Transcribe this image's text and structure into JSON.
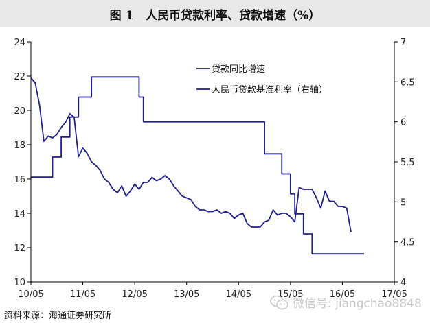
{
  "title": {
    "figure_label": "图 1",
    "text": "人民币贷款利率、贷款增速（%）"
  },
  "source": "资料来源：海通证券研究所",
  "watermark": {
    "text": "微信号: jiangchao8848",
    "icon": "wechat-icon"
  },
  "colors": {
    "series": "#1f1f8f",
    "axis": "#000000",
    "title_bg": "#e8e8e8"
  },
  "chart_data": {
    "type": "line",
    "x_ticks": [
      "10/05",
      "11/05",
      "12/05",
      "13/05",
      "14/05",
      "15/05",
      "16/05",
      "17/05"
    ],
    "x_range": [
      "2010-05",
      "2017-05"
    ],
    "y_left": {
      "min": 10,
      "max": 24,
      "ticks": [
        10,
        12,
        14,
        16,
        18,
        20,
        22,
        24
      ]
    },
    "y_right": {
      "min": 4,
      "max": 7,
      "ticks": [
        4,
        4.5,
        5,
        5.5,
        6,
        6.5,
        7
      ]
    },
    "legend": {
      "placement": "top-center"
    },
    "grid": false,
    "series": [
      {
        "name": "贷款同比增速",
        "axis": "left",
        "style": "line",
        "points": [
          [
            "2010-05",
            21.9
          ],
          [
            "2010-06",
            21.6
          ],
          [
            "2010-07",
            20.3
          ],
          [
            "2010-08",
            18.2
          ],
          [
            "2010-09",
            18.5
          ],
          [
            "2010-10",
            18.4
          ],
          [
            "2010-11",
            18.6
          ],
          [
            "2010-12",
            19.0
          ],
          [
            "2011-01",
            19.3
          ],
          [
            "2011-02",
            19.8
          ],
          [
            "2011-03",
            19.6
          ],
          [
            "2011-04",
            17.3
          ],
          [
            "2011-05",
            17.8
          ],
          [
            "2011-06",
            17.5
          ],
          [
            "2011-07",
            17.0
          ],
          [
            "2011-08",
            16.8
          ],
          [
            "2011-09",
            16.5
          ],
          [
            "2011-10",
            16.0
          ],
          [
            "2011-11",
            15.8
          ],
          [
            "2011-12",
            15.4
          ],
          [
            "2012-01",
            15.2
          ],
          [
            "2012-02",
            15.6
          ],
          [
            "2012-03",
            15.0
          ],
          [
            "2012-04",
            15.3
          ],
          [
            "2012-05",
            15.7
          ],
          [
            "2012-06",
            15.4
          ],
          [
            "2012-07",
            15.8
          ],
          [
            "2012-08",
            15.8
          ],
          [
            "2012-09",
            16.1
          ],
          [
            "2012-10",
            15.9
          ],
          [
            "2012-11",
            16.0
          ],
          [
            "2012-12",
            16.2
          ],
          [
            "2013-01",
            16.0
          ],
          [
            "2013-02",
            15.6
          ],
          [
            "2013-03",
            15.3
          ],
          [
            "2013-04",
            15.0
          ],
          [
            "2013-05",
            14.9
          ],
          [
            "2013-06",
            14.8
          ],
          [
            "2013-07",
            14.4
          ],
          [
            "2013-08",
            14.2
          ],
          [
            "2013-09",
            14.2
          ],
          [
            "2013-10",
            14.1
          ],
          [
            "2013-11",
            14.1
          ],
          [
            "2013-12",
            14.2
          ],
          [
            "2014-01",
            14.0
          ],
          [
            "2014-02",
            14.1
          ],
          [
            "2014-03",
            14.0
          ],
          [
            "2014-04",
            13.7
          ],
          [
            "2014-05",
            13.9
          ],
          [
            "2014-06",
            14.0
          ],
          [
            "2014-07",
            13.4
          ],
          [
            "2014-08",
            13.2
          ],
          [
            "2014-09",
            13.2
          ],
          [
            "2014-10",
            13.2
          ],
          [
            "2014-11",
            13.5
          ],
          [
            "2014-12",
            13.6
          ],
          [
            "2015-01",
            14.2
          ],
          [
            "2015-02",
            13.9
          ],
          [
            "2015-03",
            14.0
          ],
          [
            "2015-04",
            14.0
          ],
          [
            "2015-05",
            13.8
          ],
          [
            "2015-06",
            13.5
          ],
          [
            "2015-07",
            15.5
          ],
          [
            "2015-08",
            15.4
          ],
          [
            "2015-09",
            15.4
          ],
          [
            "2015-10",
            15.4
          ],
          [
            "2015-11",
            14.9
          ],
          [
            "2015-12",
            14.3
          ],
          [
            "2016-01",
            15.3
          ],
          [
            "2016-02",
            14.7
          ],
          [
            "2016-03",
            14.7
          ],
          [
            "2016-04",
            14.4
          ],
          [
            "2016-05",
            14.4
          ],
          [
            "2016-06",
            14.3
          ],
          [
            "2016-07",
            12.9
          ]
        ]
      },
      {
        "name": "人民币贷款基准利率（右轴）",
        "axis": "right",
        "style": "step",
        "points": [
          [
            "2010-05",
            5.31
          ],
          [
            "2010-10",
            5.56
          ],
          [
            "2010-12",
            5.81
          ],
          [
            "2011-02",
            6.06
          ],
          [
            "2011-04",
            6.31
          ],
          [
            "2011-07",
            6.56
          ],
          [
            "2012-06",
            6.31
          ],
          [
            "2012-07",
            6.0
          ],
          [
            "2014-11",
            5.6
          ],
          [
            "2015-03",
            5.35
          ],
          [
            "2015-05",
            5.1
          ],
          [
            "2015-06",
            4.85
          ],
          [
            "2015-08",
            4.6
          ],
          [
            "2015-10",
            4.35
          ],
          [
            "2016-10",
            4.35
          ]
        ]
      }
    ]
  }
}
